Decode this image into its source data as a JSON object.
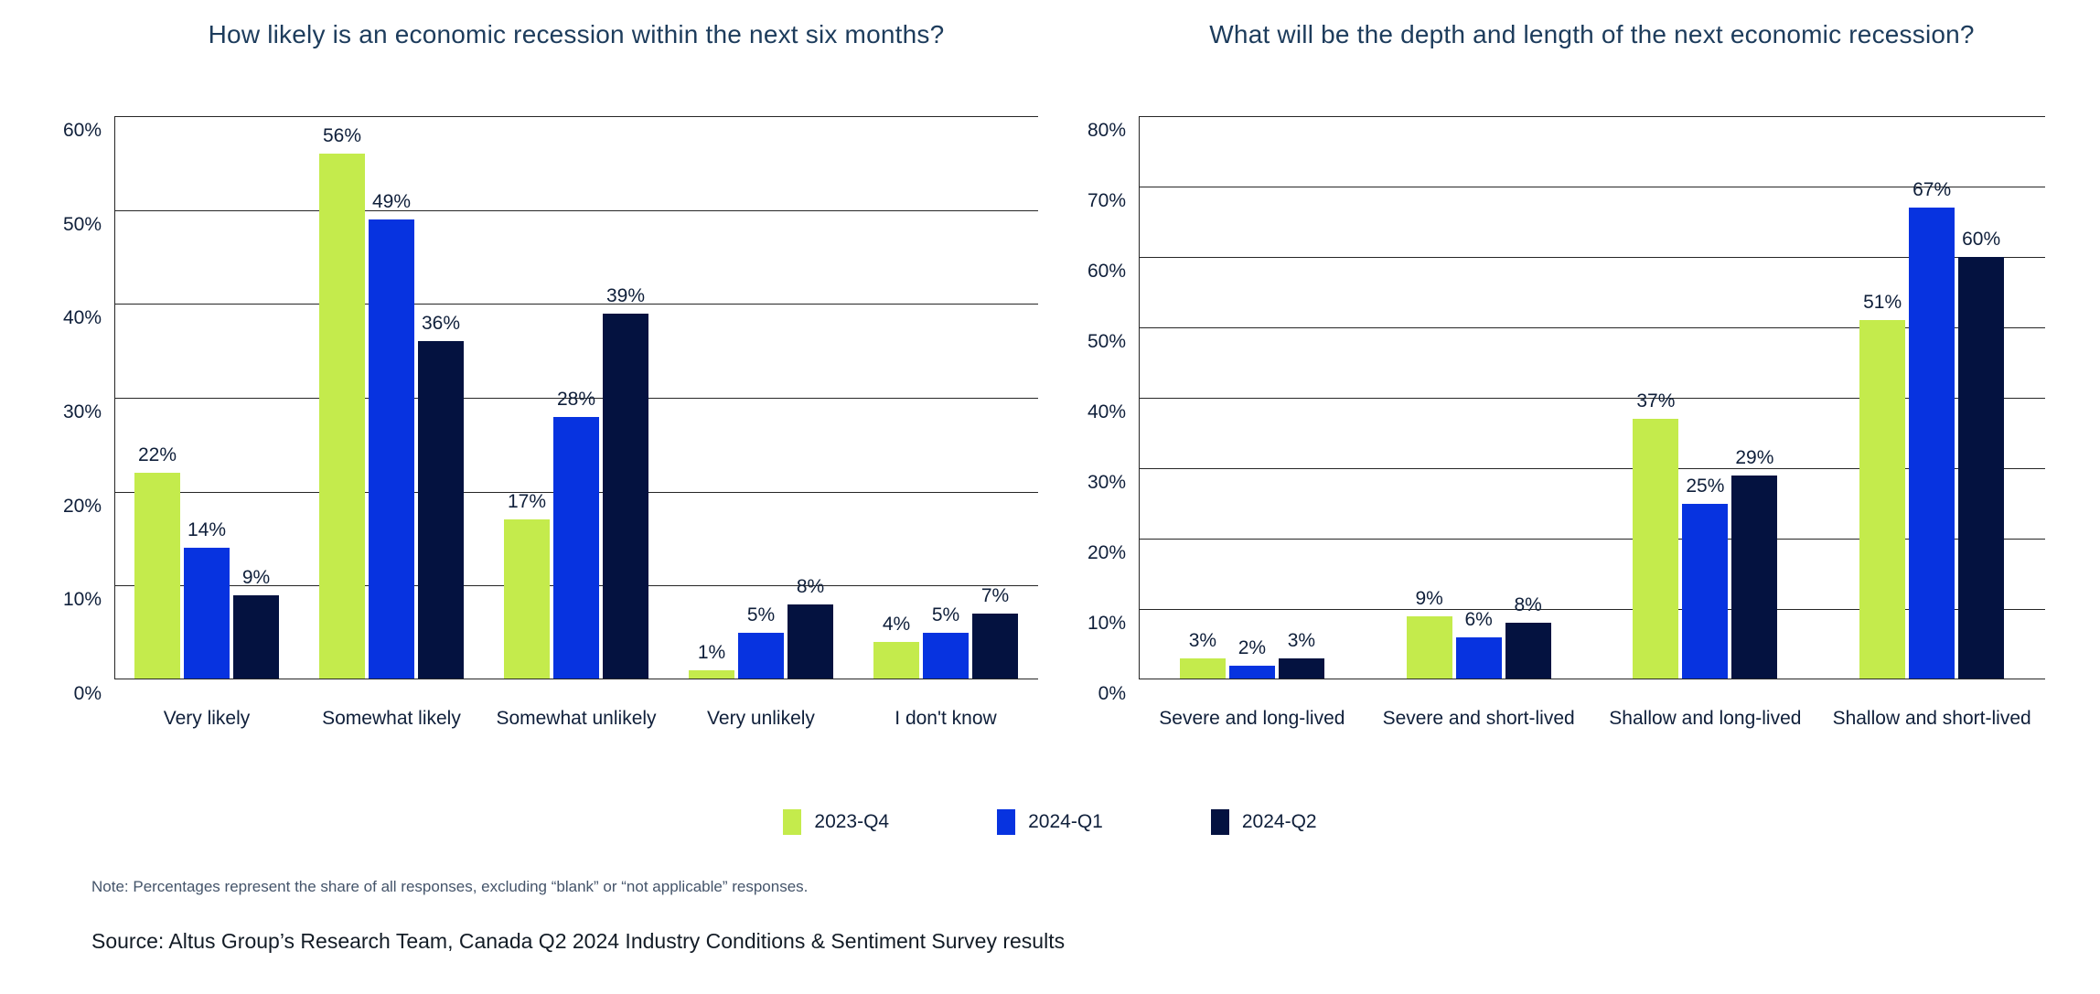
{
  "page": {
    "note": "Note: Percentages represent the share of all responses, excluding “blank” or “not applicable” responses.",
    "source": "Source: Altus Group’s Research Team, Canada Q2 2024 Industry Conditions & Sentiment Survey results"
  },
  "colors": {
    "series": [
      "#c4eb4c",
      "#0733e0",
      "#041240"
    ],
    "title_text": "#1d3c5c",
    "axis_text": "#0f1f3a",
    "gridline": "#262626",
    "note_text": "#44546a",
    "source_text": "#131c26",
    "background": "#ffffff"
  },
  "legend": {
    "position": "bottom-center",
    "items": [
      {
        "label": "2023-Q4",
        "color": "#c4eb4c"
      },
      {
        "label": "2024-Q1",
        "color": "#0733e0"
      },
      {
        "label": "2024-Q2",
        "color": "#041240"
      }
    ]
  },
  "chart_data": [
    {
      "type": "bar",
      "title": "How likely is an economic recession within the next six months?",
      "categories": [
        "Very likely",
        "Somewhat likely",
        "Somewhat unlikely",
        "Very unlikely",
        "I don't know"
      ],
      "series": [
        {
          "name": "2023-Q4",
          "values": [
            22,
            56,
            17,
            1,
            4
          ]
        },
        {
          "name": "2024-Q1",
          "values": [
            14,
            49,
            28,
            5,
            5
          ]
        },
        {
          "name": "2024-Q2",
          "values": [
            9,
            36,
            39,
            8,
            7
          ]
        }
      ],
      "xlabel": "",
      "ylabel": "",
      "ylim": [
        0,
        60
      ],
      "ytick_step": 10,
      "tick_suffix": "%",
      "value_label_suffix": "%",
      "grid": true,
      "value_labels": true
    },
    {
      "type": "bar",
      "title": "What will be the depth and length of the next economic recession?",
      "categories": [
        "Severe and long-lived",
        "Severe and short-lived",
        "Shallow and long-lived",
        "Shallow and short-lived"
      ],
      "series": [
        {
          "name": "2023-Q4",
          "values": [
            3,
            9,
            37,
            51
          ]
        },
        {
          "name": "2024-Q1",
          "values": [
            2,
            6,
            25,
            67
          ]
        },
        {
          "name": "2024-Q2",
          "values": [
            3,
            8,
            29,
            60
          ]
        }
      ],
      "xlabel": "",
      "ylabel": "",
      "ylim": [
        0,
        80
      ],
      "ytick_step": 10,
      "tick_suffix": "%",
      "value_label_suffix": "%",
      "grid": true,
      "value_labels": true
    }
  ]
}
